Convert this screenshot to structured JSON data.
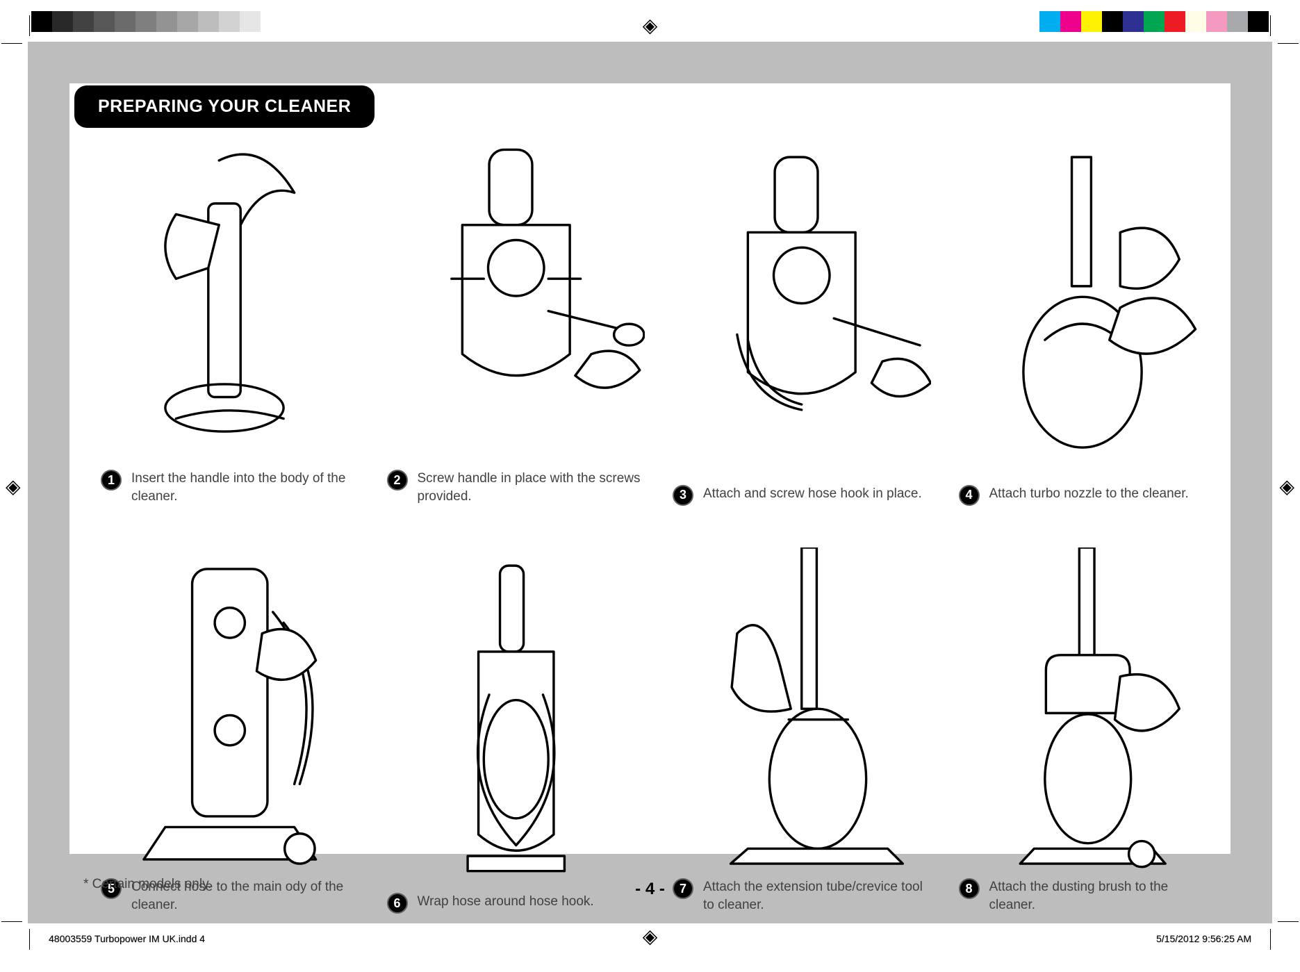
{
  "page": {
    "section_title": "PREPARING YOUR CLEANER",
    "footnote": "* Certain models only.",
    "page_number": "- 4 -",
    "slug_filename": "48003559 Turbopower IM UK.indd   4",
    "slug_datetime": "5/15/2012   9:56:25 AM",
    "colors": {
      "header_bg": "#000000",
      "header_fg": "#ffffff",
      "body_text": "#414141",
      "outer_gray": "#bdbdbd",
      "badge_border": "#606060"
    },
    "registration_mark_glyph": "◈"
  },
  "calibration_bar_left": [
    "#000000",
    "#292929",
    "#424242",
    "#575757",
    "#6b6b6b",
    "#7f7f7f",
    "#939393",
    "#a7a7a7",
    "#bdbdbd",
    "#d2d2d2",
    "#e6e6e6"
  ],
  "calibration_bar_right": [
    "#00aeef",
    "#ec008c",
    "#fff200",
    "#000000",
    "#2e3192",
    "#00a651",
    "#ed1c24",
    "#fffde6",
    "#f49ac1",
    "#a7a9ac",
    "#000000"
  ],
  "steps": [
    {
      "number": "1",
      "caption": "Insert the handle into the body of the cleaner."
    },
    {
      "number": "2",
      "caption": "Screw handle in place with the screws provided."
    },
    {
      "number": "3",
      "caption": "Attach and screw hose hook in place."
    },
    {
      "number": "4",
      "caption": "Attach turbo nozzle to the cleaner."
    },
    {
      "number": "5",
      "caption": "Connect hose to the main ody of the cleaner."
    },
    {
      "number": "6",
      "caption": "Wrap hose around hose hook."
    },
    {
      "number": "7",
      "caption": "Attach the extension tube/crevice tool to cleaner."
    },
    {
      "number": "8",
      "caption": "Attach the dusting brush to the cleaner."
    }
  ]
}
